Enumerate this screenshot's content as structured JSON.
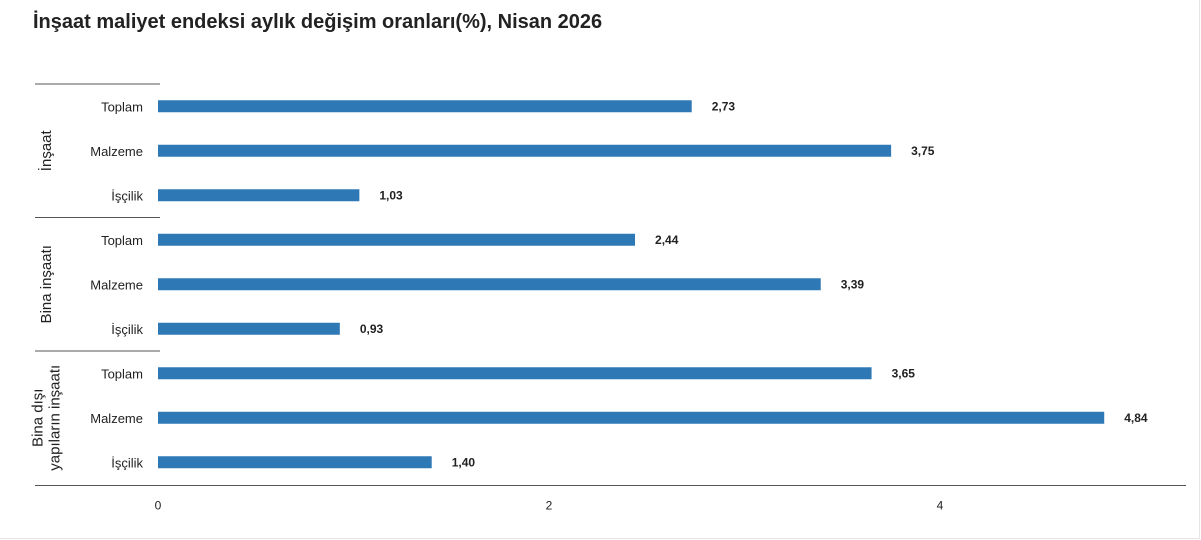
{
  "title": "İnşaat maliyet endeksi aylık değişim oranları(%), Nisan 2026",
  "colors": {
    "bar": "#2e78b5",
    "axis": "#555555",
    "grid": "#e6e6e6",
    "text": "#222222"
  },
  "chart_data": {
    "type": "bar",
    "orientation": "horizontal",
    "title": "İnşaat maliyet endeksi aylık değişim oranları(%), Nisan 2026",
    "xlabel": "",
    "ylabel": "",
    "xlim": [
      0,
      5.2
    ],
    "xticks": [
      0,
      2,
      4
    ],
    "xtick_labels": [
      "0",
      "2",
      "4"
    ],
    "grid": false,
    "legend": "none",
    "groups": [
      {
        "name": "İnşaat",
        "name_lines": [
          "İnşaat"
        ],
        "categories": [
          "Toplam",
          "Malzeme",
          "İşçilik"
        ],
        "values": [
          2.73,
          3.75,
          1.03
        ],
        "labels": [
          "2,73",
          "3,75",
          "1,03"
        ]
      },
      {
        "name": "Bina inşaatı",
        "name_lines": [
          "Bina inşaatı"
        ],
        "categories": [
          "Toplam",
          "Malzeme",
          "İşçilik"
        ],
        "values": [
          2.44,
          3.39,
          0.93
        ],
        "labels": [
          "2,44",
          "3,39",
          "0,93"
        ]
      },
      {
        "name": "Bina dışı yapıların inşaatı",
        "name_lines": [
          "Bina dışı",
          "yapıların inşaatı"
        ],
        "categories": [
          "Toplam",
          "Malzeme",
          "İşçilik"
        ],
        "values": [
          3.65,
          4.84,
          1.4
        ],
        "labels": [
          "3,65",
          "4,84",
          "1,40"
        ]
      }
    ]
  }
}
